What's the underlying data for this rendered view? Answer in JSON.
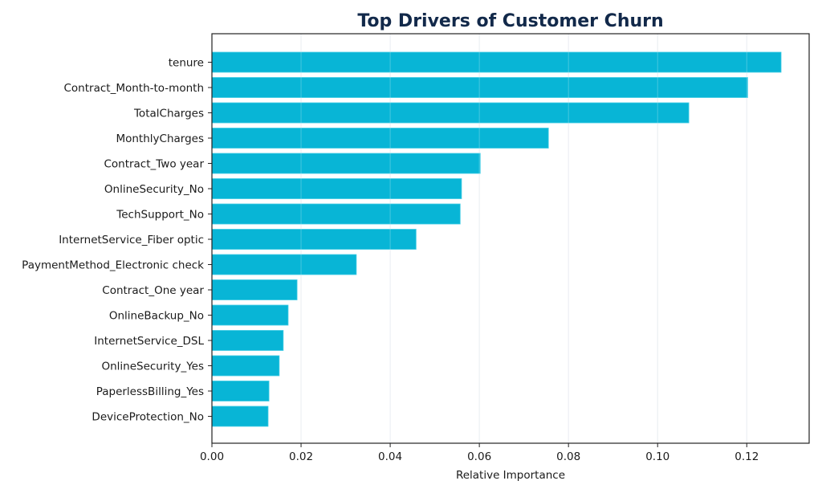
{
  "chart_data": {
    "type": "bar",
    "orientation": "horizontal",
    "title": "Top Drivers of Customer Churn",
    "xlabel": "Relative Importance",
    "ylabel": "",
    "xlim": [
      0,
      0.134
    ],
    "xticks": [
      0.0,
      0.02,
      0.04,
      0.06,
      0.08,
      0.1,
      0.12
    ],
    "xtick_labels": [
      "0.00",
      "0.02",
      "0.04",
      "0.06",
      "0.08",
      "0.10",
      "0.12"
    ],
    "grid": "x",
    "bar_color": "#08b5d6",
    "title_color": "#12294a",
    "categories": [
      "tenure",
      "Contract_Month-to-month",
      "TotalCharges",
      "MonthlyCharges",
      "Contract_Two year",
      "OnlineSecurity_No",
      "TechSupport_No",
      "InternetService_Fiber optic",
      "PaymentMethod_Electronic check",
      "Contract_One year",
      "OnlineBackup_No",
      "InternetService_DSL",
      "OnlineSecurity_Yes",
      "PaperlessBilling_Yes",
      "DeviceProtection_No"
    ],
    "values": [
      0.1277,
      0.1202,
      0.107,
      0.0755,
      0.0602,
      0.056,
      0.0557,
      0.0458,
      0.0324,
      0.0191,
      0.0171,
      0.016,
      0.0151,
      0.0128,
      0.0126
    ]
  }
}
